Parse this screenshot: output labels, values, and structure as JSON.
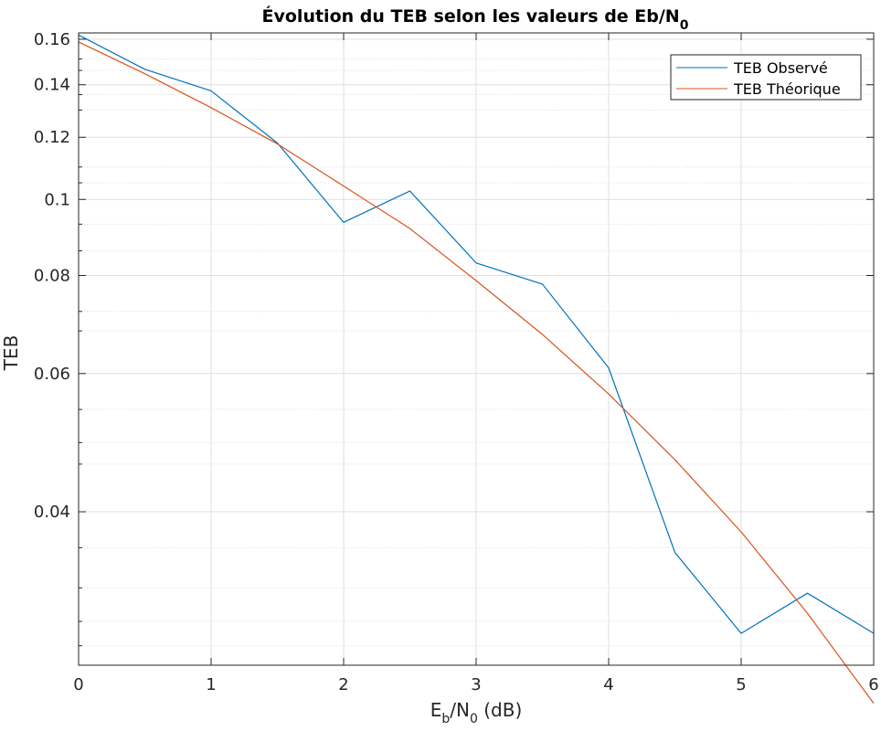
{
  "chart_data": {
    "type": "line",
    "title": "Évolution du TEB selon les valeurs de Eb/N",
    "title_subscript": "0",
    "xlabel": {
      "base": "E",
      "sub1": "b",
      "mid": "/N",
      "sub2": "0",
      "tail": " (dB)"
    },
    "ylabel": "TEB",
    "xlim": [
      0,
      6
    ],
    "ylim": [
      0.0255,
      0.163
    ],
    "yscale": "log",
    "grid": true,
    "minor_grid": true,
    "xticks": [
      0,
      1,
      2,
      3,
      4,
      5,
      6
    ],
    "xtick_labels": [
      "0",
      "1",
      "2",
      "3",
      "4",
      "5",
      "6"
    ],
    "yticks": [
      0.04,
      0.06,
      0.08,
      0.1,
      0.12,
      0.14,
      0.16
    ],
    "ytick_labels": [
      "0.04",
      "0.06",
      "0.08",
      "0.1",
      "0.12",
      "0.14",
      "0.16"
    ],
    "y_minor_ticks": [
      0.027,
      0.029,
      0.032,
      0.036,
      0.046,
      0.049,
      0.054,
      0.068,
      0.072,
      0.086,
      0.093,
      0.105,
      0.11,
      0.13,
      0.136,
      0.146,
      0.151
    ],
    "legend": {
      "position": "top-right"
    },
    "series": [
      {
        "name": "TEB Observé",
        "color": "#0072BD",
        "x": [
          0,
          0.5,
          1,
          1.5,
          2,
          2.5,
          3,
          3.5,
          4,
          4.5,
          5,
          5.5,
          6
        ],
        "values": [
          0.162,
          0.1465,
          0.1375,
          0.118,
          0.0935,
          0.1025,
          0.083,
          0.078,
          0.061,
          0.0355,
          0.028,
          0.0315,
          0.028
        ]
      },
      {
        "name": "TEB Théorique",
        "color": "#D95319",
        "x": [
          0,
          0.5,
          1,
          1.5,
          2,
          2.5,
          3,
          3.5,
          4,
          4.5,
          5,
          5.5,
          6
        ],
        "values": [
          0.1587,
          0.1446,
          0.1309,
          0.1177,
          0.104,
          0.0918,
          0.0788,
          0.0673,
          0.0565,
          0.0466,
          0.0377,
          0.0297,
          0.0228
        ]
      }
    ]
  }
}
